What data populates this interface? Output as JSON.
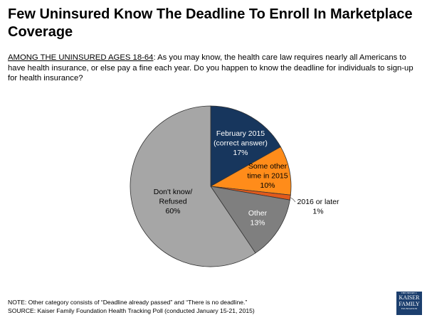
{
  "title": "Few Uninsured Know The Deadline To Enroll In Marketplace Coverage",
  "question": {
    "population": "AMONG THE UNINSURED AGES 18-64",
    "text": ": As you may know, the health care law requires nearly all Americans to have health insurance, or else pay a fine each year. Do you happen to know the deadline for individuals to sign-up for health insurance?"
  },
  "chart_data": {
    "type": "pie",
    "start_angle": "12 o'clock",
    "direction": "clockwise",
    "slices": [
      {
        "label_lines": [
          "February 2015",
          "(correct answer)"
        ],
        "value": 17,
        "value_label": "17%",
        "color": "#17365d"
      },
      {
        "label_lines": [
          "Some other",
          "time in 2015"
        ],
        "value": 10,
        "value_label": "10%",
        "color": "#ff8c1a"
      },
      {
        "label_lines": [
          "2016 or later"
        ],
        "value": 1,
        "value_label": "1%",
        "color": "#e05a1c"
      },
      {
        "label_lines": [
          "Other"
        ],
        "value": 13,
        "value_label": "13%",
        "color": "#7f7f7f"
      },
      {
        "label_lines": [
          "Don't know/",
          "Refused"
        ],
        "value": 60,
        "value_label": "60%",
        "color": "#a6a6a6"
      }
    ]
  },
  "note": "NOTE: Other category consists of “Deadline already passed” and “There is no deadline.”",
  "source": "SOURCE: Kaiser Family Foundation Health Tracking Poll (conducted January 15-21, 2015)",
  "logo": {
    "line1": "THE HENRY J.",
    "line2": "KAISER",
    "line3": "FAMILY",
    "line4": "FOUNDATION"
  }
}
